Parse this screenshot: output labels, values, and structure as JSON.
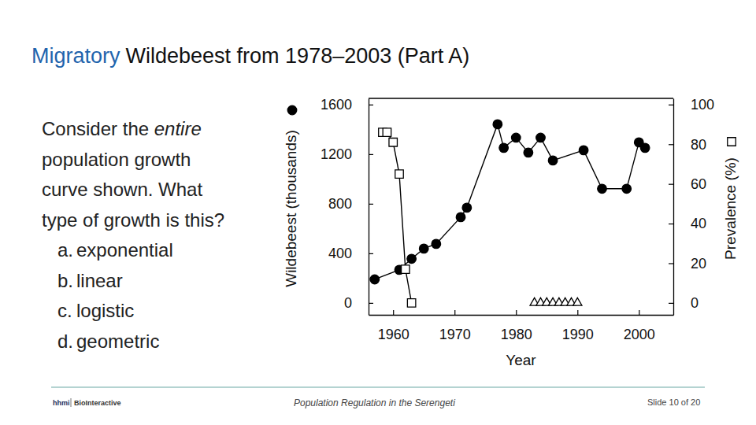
{
  "slide": {
    "title_highlight": "Migratory",
    "title_rest": "Wildebeest from 1978–2003 (Part A)",
    "question_lines": [
      "Consider the entire",
      "population growth",
      "curve shown. What",
      "type of growth is this?"
    ],
    "question_emphasis": "entire",
    "options": [
      {
        "letter": "a.",
        "text": "exponential"
      },
      {
        "letter": "b.",
        "text": "linear"
      },
      {
        "letter": "c.",
        "text": "logistic"
      },
      {
        "letter": "d.",
        "text": "geometric"
      }
    ],
    "footer": "Population Regulation in the Serengeti",
    "slide_number": "Slide 10 of 20",
    "logo": [
      "hhmi",
      "BioInteractive"
    ]
  },
  "chart_data": {
    "type": "line",
    "x_label": "Year",
    "y_label": "Wildebeest (thousands)",
    "y2_label": "Prevalence (%)",
    "xlim": [
      1956,
      2005.6
    ],
    "xticks": [
      1960,
      1970,
      1980,
      1990,
      2000
    ],
    "ylim": [
      -96,
      1650
    ],
    "yticks": [
      0,
      400,
      800,
      1200,
      1600
    ],
    "y2lim": [
      -6,
      103.125
    ],
    "y2ticks": [
      0,
      20,
      40,
      60,
      80,
      100
    ],
    "grid": false,
    "series": [
      {
        "type": "line",
        "marker": "filled-circle",
        "color": "#000000",
        "x": [
          1957,
          1961,
          1963,
          1965,
          1967,
          1971,
          1972,
          1977,
          1978,
          1980,
          1982,
          1984,
          1986,
          1991,
          1994,
          1998,
          2000,
          2001
        ],
        "values": [
          190,
          267,
          356,
          438,
          476,
          692,
          768,
          1441,
          1251,
          1333,
          1213,
          1333,
          1149,
          1232,
          921,
          921,
          1295,
          1251
        ]
      },
      {
        "type": "line",
        "marker": "open-square",
        "color": "#000000",
        "axis": "y2",
        "x": [
          1958.3,
          1959,
          1960,
          1961,
          1962,
          1963
        ],
        "values": [
          86,
          86,
          81,
          65,
          17,
          0
        ]
      },
      {
        "type": "scatter",
        "marker": "open-triangle",
        "color": "#000000",
        "axis": "y2",
        "x": [
          1983,
          1984,
          1985,
          1986,
          1987,
          1988,
          1989,
          1990
        ],
        "values": [
          0,
          0,
          0,
          0,
          0,
          0,
          0,
          0
        ]
      }
    ]
  }
}
